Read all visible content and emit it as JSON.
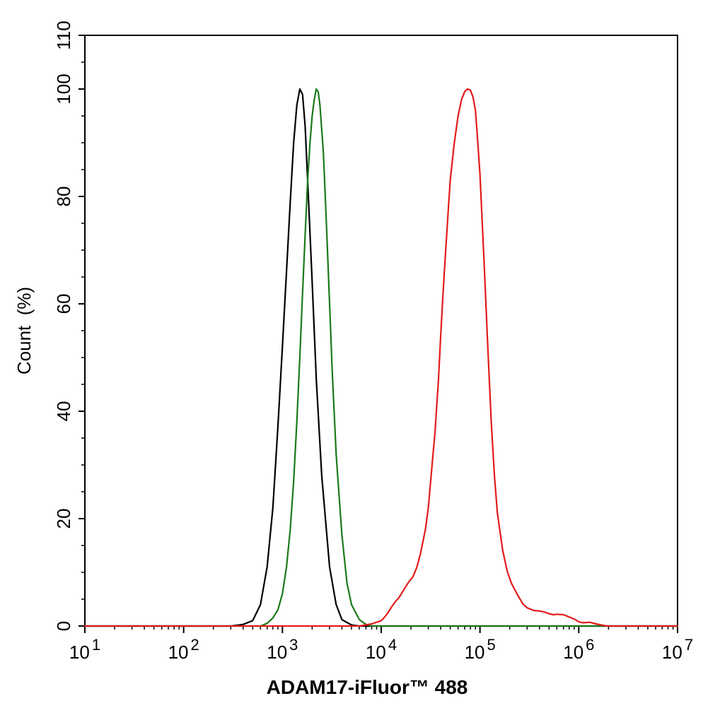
{
  "chart_data": {
    "type": "line",
    "title": "",
    "xlabel": "ADAM17-iFluor™ 488",
    "ylabel": "Count  (%)",
    "xscale": "log",
    "xlim": [
      10,
      10000000
    ],
    "ylim": [
      0,
      110
    ],
    "x_ticks": [
      {
        "value": 10,
        "base": "10",
        "exp": "1"
      },
      {
        "value": 100,
        "base": "10",
        "exp": "2"
      },
      {
        "value": 1000,
        "base": "10",
        "exp": "3"
      },
      {
        "value": 10000,
        "base": "10",
        "exp": "4"
      },
      {
        "value": 100000,
        "base": "10",
        "exp": "5"
      },
      {
        "value": 1000000,
        "base": "10",
        "exp": "6"
      },
      {
        "value": 10000000,
        "base": "10",
        "exp": "7"
      }
    ],
    "y_ticks": [
      0,
      20,
      40,
      60,
      80,
      100,
      110
    ],
    "grid": false,
    "legend": "none",
    "series": [
      {
        "color": "#000000",
        "points": [
          [
            10,
            0
          ],
          [
            300,
            0
          ],
          [
            400,
            0.3
          ],
          [
            500,
            1
          ],
          [
            600,
            4
          ],
          [
            700,
            11
          ],
          [
            800,
            22
          ],
          [
            900,
            37
          ],
          [
            1000,
            52
          ],
          [
            1100,
            66
          ],
          [
            1200,
            79
          ],
          [
            1300,
            90
          ],
          [
            1400,
            97
          ],
          [
            1500,
            100
          ],
          [
            1600,
            99
          ],
          [
            1700,
            93
          ],
          [
            1800,
            83
          ],
          [
            2000,
            64
          ],
          [
            2200,
            46
          ],
          [
            2500,
            28
          ],
          [
            3000,
            11
          ],
          [
            3500,
            4
          ],
          [
            4000,
            1.2
          ],
          [
            5000,
            0.2
          ],
          [
            6000,
            0
          ],
          [
            10000000,
            0
          ]
        ]
      },
      {
        "color": "#1a7a1a",
        "points": [
          [
            10,
            0
          ],
          [
            600,
            0
          ],
          [
            700,
            0.5
          ],
          [
            800,
            1.5
          ],
          [
            900,
            3
          ],
          [
            1000,
            6
          ],
          [
            1100,
            11
          ],
          [
            1200,
            18
          ],
          [
            1300,
            27
          ],
          [
            1400,
            38
          ],
          [
            1500,
            50
          ],
          [
            1600,
            62
          ],
          [
            1700,
            73
          ],
          [
            1800,
            83
          ],
          [
            1900,
            90
          ],
          [
            2000,
            95
          ],
          [
            2100,
            98
          ],
          [
            2200,
            100
          ],
          [
            2300,
            99.5
          ],
          [
            2400,
            97
          ],
          [
            2600,
            88
          ],
          [
            2800,
            74
          ],
          [
            3000,
            60
          ],
          [
            3200,
            47
          ],
          [
            3500,
            32
          ],
          [
            4000,
            17
          ],
          [
            4500,
            8
          ],
          [
            5000,
            4
          ],
          [
            6000,
            1.2
          ],
          [
            7000,
            0.3
          ],
          [
            8000,
            0
          ],
          [
            10000000,
            0
          ]
        ]
      },
      {
        "color": "#e31b1b",
        "points": [
          [
            10,
            0
          ],
          [
            6000,
            0
          ],
          [
            8000,
            0.4
          ],
          [
            10000,
            1
          ],
          [
            11000,
            1.8
          ],
          [
            12000,
            2.8
          ],
          [
            13000,
            3.8
          ],
          [
            14000,
            4.6
          ],
          [
            15000,
            5.2
          ],
          [
            17000,
            6.8
          ],
          [
            19000,
            8.2
          ],
          [
            21000,
            9.2
          ],
          [
            23000,
            11
          ],
          [
            25000,
            13.5
          ],
          [
            28000,
            18
          ],
          [
            30000,
            22
          ],
          [
            32000,
            28
          ],
          [
            35000,
            36
          ],
          [
            38000,
            46
          ],
          [
            40000,
            54
          ],
          [
            42000,
            61
          ],
          [
            45000,
            70
          ],
          [
            48000,
            78
          ],
          [
            50000,
            83
          ],
          [
            55000,
            90
          ],
          [
            60000,
            95
          ],
          [
            65000,
            98
          ],
          [
            70000,
            99.5
          ],
          [
            75000,
            100
          ],
          [
            80000,
            99.8
          ],
          [
            85000,
            98.5
          ],
          [
            90000,
            96
          ],
          [
            95000,
            90
          ],
          [
            100000,
            84
          ],
          [
            110000,
            68
          ],
          [
            120000,
            52
          ],
          [
            130000,
            38
          ],
          [
            140000,
            28
          ],
          [
            150000,
            21
          ],
          [
            170000,
            14
          ],
          [
            190000,
            10
          ],
          [
            210000,
            7.8
          ],
          [
            240000,
            5.8
          ],
          [
            270000,
            4.2
          ],
          [
            300000,
            3.4
          ],
          [
            350000,
            2.9
          ],
          [
            400000,
            2.8
          ],
          [
            450000,
            2.6
          ],
          [
            500000,
            2.3
          ],
          [
            550000,
            2.1
          ],
          [
            600000,
            2.2
          ],
          [
            700000,
            2.1
          ],
          [
            800000,
            1.7
          ],
          [
            900000,
            1.3
          ],
          [
            1000000,
            0.8
          ],
          [
            1100000,
            0.6
          ],
          [
            1300000,
            0.7
          ],
          [
            1500000,
            0.4
          ],
          [
            1800000,
            0.1
          ],
          [
            2000000,
            0
          ],
          [
            10000000,
            0
          ]
        ]
      }
    ]
  }
}
